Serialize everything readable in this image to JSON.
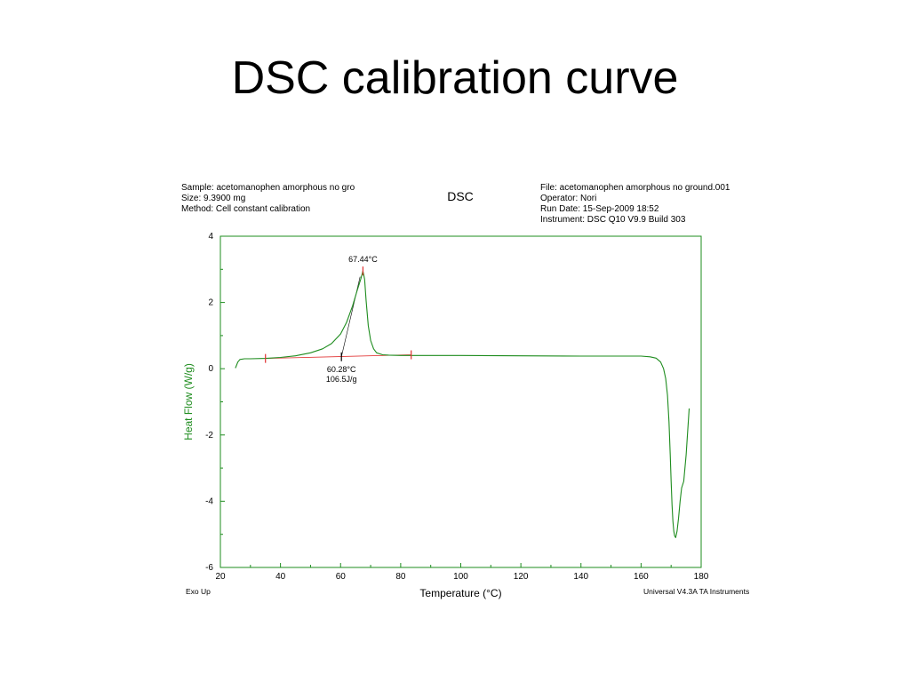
{
  "slide": {
    "title": "DSC calibration curve"
  },
  "header_left": {
    "sample": "Sample: acetomanophen amorphous no gro",
    "size": "Size:  9.3900 mg",
    "method": "Method: Cell constant calibration"
  },
  "header_right": {
    "file": "File: acetomanophen amorphous no ground.001",
    "operator": "Operator: Nori",
    "run_date": "Run Date: 15-Sep-2009 18:52",
    "instrument": "Instrument: DSC Q10 V9.9 Build 303"
  },
  "footer": {
    "exo": "Exo Up",
    "software": "Universal V4.3A TA Instruments"
  },
  "chart_data": {
    "type": "line",
    "title": "DSC",
    "xlabel": "Temperature (°C)",
    "ylabel": "Heat Flow (W/g)",
    "xlim": [
      20,
      180
    ],
    "ylim": [
      -6,
      4
    ],
    "x_ticks": [
      20,
      40,
      60,
      80,
      100,
      120,
      140,
      160,
      180
    ],
    "y_ticks": [
      -6,
      -4,
      -2,
      0,
      2,
      4
    ],
    "grid": false,
    "colors": {
      "curve": "#1e8c1e",
      "baseline": "#e03030",
      "axis": "#1e8c1e",
      "ylabel": "#1e8c1e"
    },
    "series": [
      {
        "x": [
          25,
          25.8,
          26.5,
          28,
          30,
          35,
          40,
          45,
          50,
          54,
          57,
          60,
          62,
          64,
          65.5,
          66.7,
          67.44,
          68,
          68.5,
          69.2,
          70,
          71,
          72,
          74,
          76,
          80,
          90,
          100,
          120,
          140,
          160,
          163,
          165,
          166.5,
          167.5,
          168.2,
          168.8,
          169.3,
          169.7,
          170,
          170.3,
          170.6,
          170.9,
          171.2,
          171.5,
          172,
          172.5,
          173,
          173.5,
          174.2,
          175,
          176
        ],
        "y": [
          0.02,
          0.2,
          0.28,
          0.3,
          0.3,
          0.31,
          0.34,
          0.39,
          0.48,
          0.6,
          0.76,
          1.05,
          1.4,
          1.9,
          2.35,
          2.7,
          2.95,
          2.7,
          2.05,
          1.3,
          0.85,
          0.6,
          0.48,
          0.42,
          0.41,
          0.4,
          0.4,
          0.4,
          0.39,
          0.38,
          0.38,
          0.36,
          0.32,
          0.2,
          0.0,
          -0.3,
          -0.8,
          -1.6,
          -2.6,
          -3.4,
          -4.1,
          -4.6,
          -4.9,
          -5.05,
          -5.1,
          -4.9,
          -4.5,
          -4.0,
          -3.6,
          -3.4,
          -2.6,
          -1.2
        ]
      }
    ],
    "baseline": {
      "x": [
        35,
        83.5
      ],
      "y": [
        0.31,
        0.42
      ]
    },
    "tangent": {
      "x": [
        60.28,
        66.5
      ],
      "y": [
        0.36,
        2.78
      ]
    },
    "markers": [
      {
        "x": 35,
        "y": 0.31,
        "color": "#e03030"
      },
      {
        "x": 83.5,
        "y": 0.42,
        "color": "#e03030"
      },
      {
        "x": 67.44,
        "y": 2.95,
        "color": "#e03030"
      },
      {
        "x": 60.28,
        "y": 0.36,
        "color": "#000000"
      }
    ],
    "annotations": [
      {
        "text": "67.44°C",
        "x": 67.44,
        "y": 2.95,
        "anchor": "above"
      },
      {
        "text": "60.28°C",
        "x": 60.28,
        "y": 0.36,
        "anchor": "below",
        "line": 1
      },
      {
        "text": "106.5J/g",
        "x": 60.28,
        "y": 0.36,
        "anchor": "below",
        "line": 2
      }
    ]
  }
}
